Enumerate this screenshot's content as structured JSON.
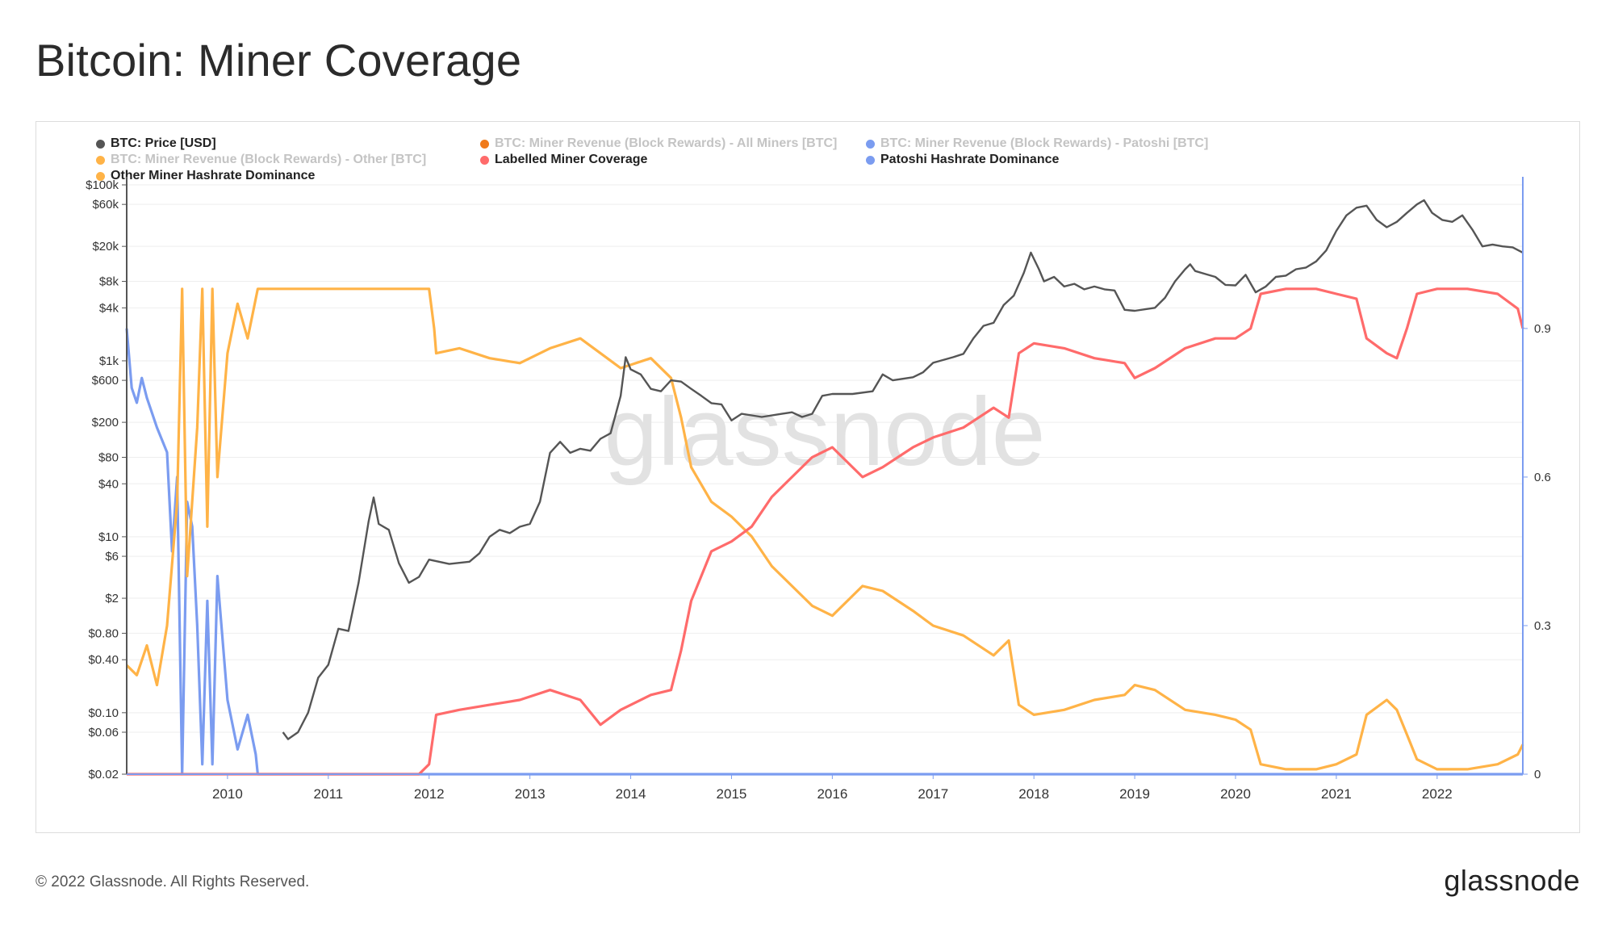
{
  "title": "Bitcoin: Miner Coverage",
  "footer": {
    "copyright": "© 2022 Glassnode. All Rights Reserved.",
    "brand": "glassnode"
  },
  "watermark": "glassnode",
  "legend": [
    {
      "label": "BTC: Price [USD]",
      "color": "#555555",
      "muted": false
    },
    {
      "label": "BTC: Miner Revenue (Block Rewards) - All Miners [BTC]",
      "color": "#f07a1a",
      "muted": true
    },
    {
      "label": "BTC: Miner Revenue (Block Rewards) - Patoshi [BTC]",
      "color": "#7b9cf0",
      "muted": true
    },
    {
      "label": "BTC: Miner Revenue (Block Rewards) - Other [BTC]",
      "color": "#ffb347",
      "muted": true
    },
    {
      "label": "Labelled Miner Coverage",
      "color": "#ff6b6b",
      "muted": false
    },
    {
      "label": "Patoshi Hashrate Dominance",
      "color": "#7b9cf0",
      "muted": false
    },
    {
      "label": "Other Miner Hashrate Dominance",
      "color": "#ffb347",
      "muted": false
    }
  ],
  "chart_data": {
    "type": "line",
    "x_range": [
      2009.0,
      2022.85
    ],
    "x_ticks": [
      2010,
      2011,
      2012,
      2013,
      2014,
      2015,
      2016,
      2017,
      2018,
      2019,
      2020,
      2021,
      2022
    ],
    "x_tick_labels": [
      "2010",
      "2011",
      "2012",
      "2013",
      "2014",
      "2015",
      "2016",
      "2017",
      "2018",
      "2019",
      "2020",
      "2021",
      "2022"
    ],
    "y_left": {
      "scale": "log",
      "range": [
        0.02,
        100000
      ],
      "ticks": [
        0.02,
        0.06,
        0.1,
        0.4,
        0.8,
        2,
        6,
        10,
        40,
        80,
        200,
        600,
        1000,
        4000,
        8000,
        20000,
        60000,
        100000
      ],
      "tick_labels": [
        "$0.02",
        "$0.06",
        "$0.10",
        "$0.40",
        "$0.80",
        "$2",
        "$6",
        "$10",
        "$40",
        "$80",
        "$200",
        "$600",
        "$1k",
        "$4k",
        "$8k",
        "$20k",
        "$60k",
        "$100k"
      ]
    },
    "y_right": {
      "scale": "linear",
      "range": [
        0,
        1.19
      ],
      "ticks": [
        0,
        0.3,
        0.6,
        0.9
      ],
      "tick_labels": [
        "0",
        "0.3",
        "0.6",
        "0.9"
      ]
    },
    "series": [
      {
        "name": "BTC: Price [USD]",
        "axis": "left",
        "color": "#555555",
        "points": [
          [
            2010.55,
            0.06
          ],
          [
            2010.6,
            0.05
          ],
          [
            2010.7,
            0.06
          ],
          [
            2010.8,
            0.1
          ],
          [
            2010.9,
            0.25
          ],
          [
            2011.0,
            0.35
          ],
          [
            2011.1,
            0.9
          ],
          [
            2011.2,
            0.85
          ],
          [
            2011.3,
            3
          ],
          [
            2011.4,
            15
          ],
          [
            2011.45,
            28
          ],
          [
            2011.5,
            14
          ],
          [
            2011.6,
            12
          ],
          [
            2011.7,
            5
          ],
          [
            2011.8,
            3
          ],
          [
            2011.9,
            3.5
          ],
          [
            2012.0,
            5.5
          ],
          [
            2012.2,
            4.9
          ],
          [
            2012.4,
            5.2
          ],
          [
            2012.5,
            6.5
          ],
          [
            2012.6,
            10
          ],
          [
            2012.7,
            12
          ],
          [
            2012.8,
            11
          ],
          [
            2012.9,
            13
          ],
          [
            2013.0,
            14
          ],
          [
            2013.1,
            25
          ],
          [
            2013.2,
            90
          ],
          [
            2013.3,
            120
          ],
          [
            2013.4,
            90
          ],
          [
            2013.5,
            100
          ],
          [
            2013.6,
            95
          ],
          [
            2013.7,
            130
          ],
          [
            2013.8,
            150
          ],
          [
            2013.9,
            400
          ],
          [
            2013.95,
            1100
          ],
          [
            2014.0,
            800
          ],
          [
            2014.1,
            700
          ],
          [
            2014.2,
            480
          ],
          [
            2014.3,
            450
          ],
          [
            2014.4,
            600
          ],
          [
            2014.5,
            580
          ],
          [
            2014.6,
            480
          ],
          [
            2014.7,
            400
          ],
          [
            2014.8,
            330
          ],
          [
            2014.9,
            320
          ],
          [
            2015.0,
            210
          ],
          [
            2015.1,
            250
          ],
          [
            2015.2,
            240
          ],
          [
            2015.3,
            230
          ],
          [
            2015.5,
            250
          ],
          [
            2015.6,
            260
          ],
          [
            2015.7,
            230
          ],
          [
            2015.8,
            250
          ],
          [
            2015.9,
            400
          ],
          [
            2016.0,
            420
          ],
          [
            2016.2,
            420
          ],
          [
            2016.4,
            450
          ],
          [
            2016.5,
            700
          ],
          [
            2016.6,
            600
          ],
          [
            2016.8,
            650
          ],
          [
            2016.9,
            740
          ],
          [
            2017.0,
            950
          ],
          [
            2017.2,
            1100
          ],
          [
            2017.3,
            1200
          ],
          [
            2017.4,
            1800
          ],
          [
            2017.5,
            2500
          ],
          [
            2017.6,
            2700
          ],
          [
            2017.7,
            4300
          ],
          [
            2017.8,
            5500
          ],
          [
            2017.9,
            10000
          ],
          [
            2017.97,
            17000
          ],
          [
            2018.05,
            11000
          ],
          [
            2018.1,
            8000
          ],
          [
            2018.2,
            9000
          ],
          [
            2018.3,
            7000
          ],
          [
            2018.4,
            7500
          ],
          [
            2018.5,
            6500
          ],
          [
            2018.6,
            7000
          ],
          [
            2018.7,
            6500
          ],
          [
            2018.8,
            6300
          ],
          [
            2018.9,
            3800
          ],
          [
            2019.0,
            3700
          ],
          [
            2019.2,
            4000
          ],
          [
            2019.3,
            5200
          ],
          [
            2019.4,
            8000
          ],
          [
            2019.5,
            11000
          ],
          [
            2019.55,
            12500
          ],
          [
            2019.6,
            10500
          ],
          [
            2019.7,
            9700
          ],
          [
            2019.8,
            9000
          ],
          [
            2019.9,
            7300
          ],
          [
            2020.0,
            7200
          ],
          [
            2020.1,
            9500
          ],
          [
            2020.2,
            6000
          ],
          [
            2020.3,
            7000
          ],
          [
            2020.4,
            9000
          ],
          [
            2020.5,
            9300
          ],
          [
            2020.6,
            11000
          ],
          [
            2020.7,
            11500
          ],
          [
            2020.8,
            13500
          ],
          [
            2020.9,
            18000
          ],
          [
            2021.0,
            30000
          ],
          [
            2021.1,
            45000
          ],
          [
            2021.2,
            55000
          ],
          [
            2021.3,
            58000
          ],
          [
            2021.4,
            40000
          ],
          [
            2021.5,
            33000
          ],
          [
            2021.6,
            38000
          ],
          [
            2021.7,
            48000
          ],
          [
            2021.8,
            60000
          ],
          [
            2021.87,
            67000
          ],
          [
            2021.95,
            48000
          ],
          [
            2022.05,
            40000
          ],
          [
            2022.15,
            38000
          ],
          [
            2022.25,
            45000
          ],
          [
            2022.35,
            31000
          ],
          [
            2022.45,
            20000
          ],
          [
            2022.55,
            21000
          ],
          [
            2022.65,
            20000
          ],
          [
            2022.75,
            19500
          ],
          [
            2022.85,
            17000
          ]
        ]
      },
      {
        "name": "Labelled Miner Coverage",
        "axis": "right",
        "color": "#ff6b6b",
        "points": [
          [
            2009.0,
            0.0
          ],
          [
            2011.9,
            0.0
          ],
          [
            2012.0,
            0.02
          ],
          [
            2012.07,
            0.12
          ],
          [
            2012.3,
            0.13
          ],
          [
            2012.6,
            0.14
          ],
          [
            2012.9,
            0.15
          ],
          [
            2013.2,
            0.17
          ],
          [
            2013.5,
            0.15
          ],
          [
            2013.7,
            0.1
          ],
          [
            2013.9,
            0.13
          ],
          [
            2014.2,
            0.16
          ],
          [
            2014.4,
            0.17
          ],
          [
            2014.5,
            0.25
          ],
          [
            2014.6,
            0.35
          ],
          [
            2014.8,
            0.45
          ],
          [
            2015.0,
            0.47
          ],
          [
            2015.2,
            0.5
          ],
          [
            2015.4,
            0.56
          ],
          [
            2015.6,
            0.6
          ],
          [
            2015.8,
            0.64
          ],
          [
            2016.0,
            0.66
          ],
          [
            2016.3,
            0.6
          ],
          [
            2016.5,
            0.62
          ],
          [
            2016.8,
            0.66
          ],
          [
            2017.0,
            0.68
          ],
          [
            2017.3,
            0.7
          ],
          [
            2017.6,
            0.74
          ],
          [
            2017.75,
            0.72
          ],
          [
            2017.85,
            0.85
          ],
          [
            2018.0,
            0.87
          ],
          [
            2018.3,
            0.86
          ],
          [
            2018.6,
            0.84
          ],
          [
            2018.9,
            0.83
          ],
          [
            2019.0,
            0.8
          ],
          [
            2019.2,
            0.82
          ],
          [
            2019.5,
            0.86
          ],
          [
            2019.8,
            0.88
          ],
          [
            2020.0,
            0.88
          ],
          [
            2020.15,
            0.9
          ],
          [
            2020.25,
            0.97
          ],
          [
            2020.5,
            0.98
          ],
          [
            2020.8,
            0.98
          ],
          [
            2021.0,
            0.97
          ],
          [
            2021.2,
            0.96
          ],
          [
            2021.3,
            0.88
          ],
          [
            2021.5,
            0.85
          ],
          [
            2021.6,
            0.84
          ],
          [
            2021.7,
            0.9
          ],
          [
            2021.8,
            0.97
          ],
          [
            2022.0,
            0.98
          ],
          [
            2022.3,
            0.98
          ],
          [
            2022.6,
            0.97
          ],
          [
            2022.8,
            0.94
          ],
          [
            2022.85,
            0.9
          ]
        ]
      },
      {
        "name": "Other Miner Hashrate Dominance",
        "axis": "right",
        "color": "#ffb347",
        "points": [
          [
            2009.0,
            0.22
          ],
          [
            2009.1,
            0.2
          ],
          [
            2009.2,
            0.26
          ],
          [
            2009.3,
            0.18
          ],
          [
            2009.4,
            0.3
          ],
          [
            2009.5,
            0.55
          ],
          [
            2009.55,
            0.98
          ],
          [
            2009.6,
            0.4
          ],
          [
            2009.7,
            0.7
          ],
          [
            2009.75,
            0.98
          ],
          [
            2009.8,
            0.5
          ],
          [
            2009.85,
            0.98
          ],
          [
            2009.9,
            0.6
          ],
          [
            2010.0,
            0.85
          ],
          [
            2010.1,
            0.95
          ],
          [
            2010.2,
            0.88
          ],
          [
            2010.28,
            0.96
          ],
          [
            2010.3,
            0.98
          ],
          [
            2011.0,
            0.98
          ],
          [
            2011.5,
            0.98
          ],
          [
            2012.0,
            0.98
          ],
          [
            2012.05,
            0.9
          ],
          [
            2012.07,
            0.85
          ],
          [
            2012.3,
            0.86
          ],
          [
            2012.6,
            0.84
          ],
          [
            2012.9,
            0.83
          ],
          [
            2013.2,
            0.86
          ],
          [
            2013.5,
            0.88
          ],
          [
            2013.7,
            0.85
          ],
          [
            2013.9,
            0.82
          ],
          [
            2014.2,
            0.84
          ],
          [
            2014.4,
            0.8
          ],
          [
            2014.5,
            0.72
          ],
          [
            2014.6,
            0.62
          ],
          [
            2014.8,
            0.55
          ],
          [
            2015.0,
            0.52
          ],
          [
            2015.2,
            0.48
          ],
          [
            2015.4,
            0.42
          ],
          [
            2015.6,
            0.38
          ],
          [
            2015.8,
            0.34
          ],
          [
            2016.0,
            0.32
          ],
          [
            2016.3,
            0.38
          ],
          [
            2016.5,
            0.37
          ],
          [
            2016.8,
            0.33
          ],
          [
            2017.0,
            0.3
          ],
          [
            2017.3,
            0.28
          ],
          [
            2017.6,
            0.24
          ],
          [
            2017.75,
            0.27
          ],
          [
            2017.85,
            0.14
          ],
          [
            2018.0,
            0.12
          ],
          [
            2018.3,
            0.13
          ],
          [
            2018.6,
            0.15
          ],
          [
            2018.9,
            0.16
          ],
          [
            2019.0,
            0.18
          ],
          [
            2019.2,
            0.17
          ],
          [
            2019.5,
            0.13
          ],
          [
            2019.8,
            0.12
          ],
          [
            2020.0,
            0.11
          ],
          [
            2020.15,
            0.09
          ],
          [
            2020.25,
            0.02
          ],
          [
            2020.5,
            0.01
          ],
          [
            2020.8,
            0.01
          ],
          [
            2021.0,
            0.02
          ],
          [
            2021.2,
            0.04
          ],
          [
            2021.3,
            0.12
          ],
          [
            2021.5,
            0.15
          ],
          [
            2021.6,
            0.13
          ],
          [
            2021.7,
            0.08
          ],
          [
            2021.8,
            0.03
          ],
          [
            2022.0,
            0.01
          ],
          [
            2022.3,
            0.01
          ],
          [
            2022.6,
            0.02
          ],
          [
            2022.8,
            0.04
          ],
          [
            2022.85,
            0.06
          ]
        ]
      },
      {
        "name": "Patoshi Hashrate Dominance",
        "axis": "right",
        "color": "#7b9cf0",
        "points": [
          [
            2009.0,
            0.9
          ],
          [
            2009.05,
            0.78
          ],
          [
            2009.1,
            0.75
          ],
          [
            2009.15,
            0.8
          ],
          [
            2009.2,
            0.76
          ],
          [
            2009.3,
            0.7
          ],
          [
            2009.4,
            0.65
          ],
          [
            2009.45,
            0.45
          ],
          [
            2009.5,
            0.6
          ],
          [
            2009.55,
            0.0
          ],
          [
            2009.6,
            0.55
          ],
          [
            2009.65,
            0.5
          ],
          [
            2009.7,
            0.3
          ],
          [
            2009.75,
            0.02
          ],
          [
            2009.8,
            0.35
          ],
          [
            2009.85,
            0.02
          ],
          [
            2009.9,
            0.4
          ],
          [
            2010.0,
            0.15
          ],
          [
            2010.1,
            0.05
          ],
          [
            2010.2,
            0.12
          ],
          [
            2010.28,
            0.04
          ],
          [
            2010.3,
            0.0
          ],
          [
            2022.85,
            0.0
          ]
        ]
      }
    ]
  }
}
